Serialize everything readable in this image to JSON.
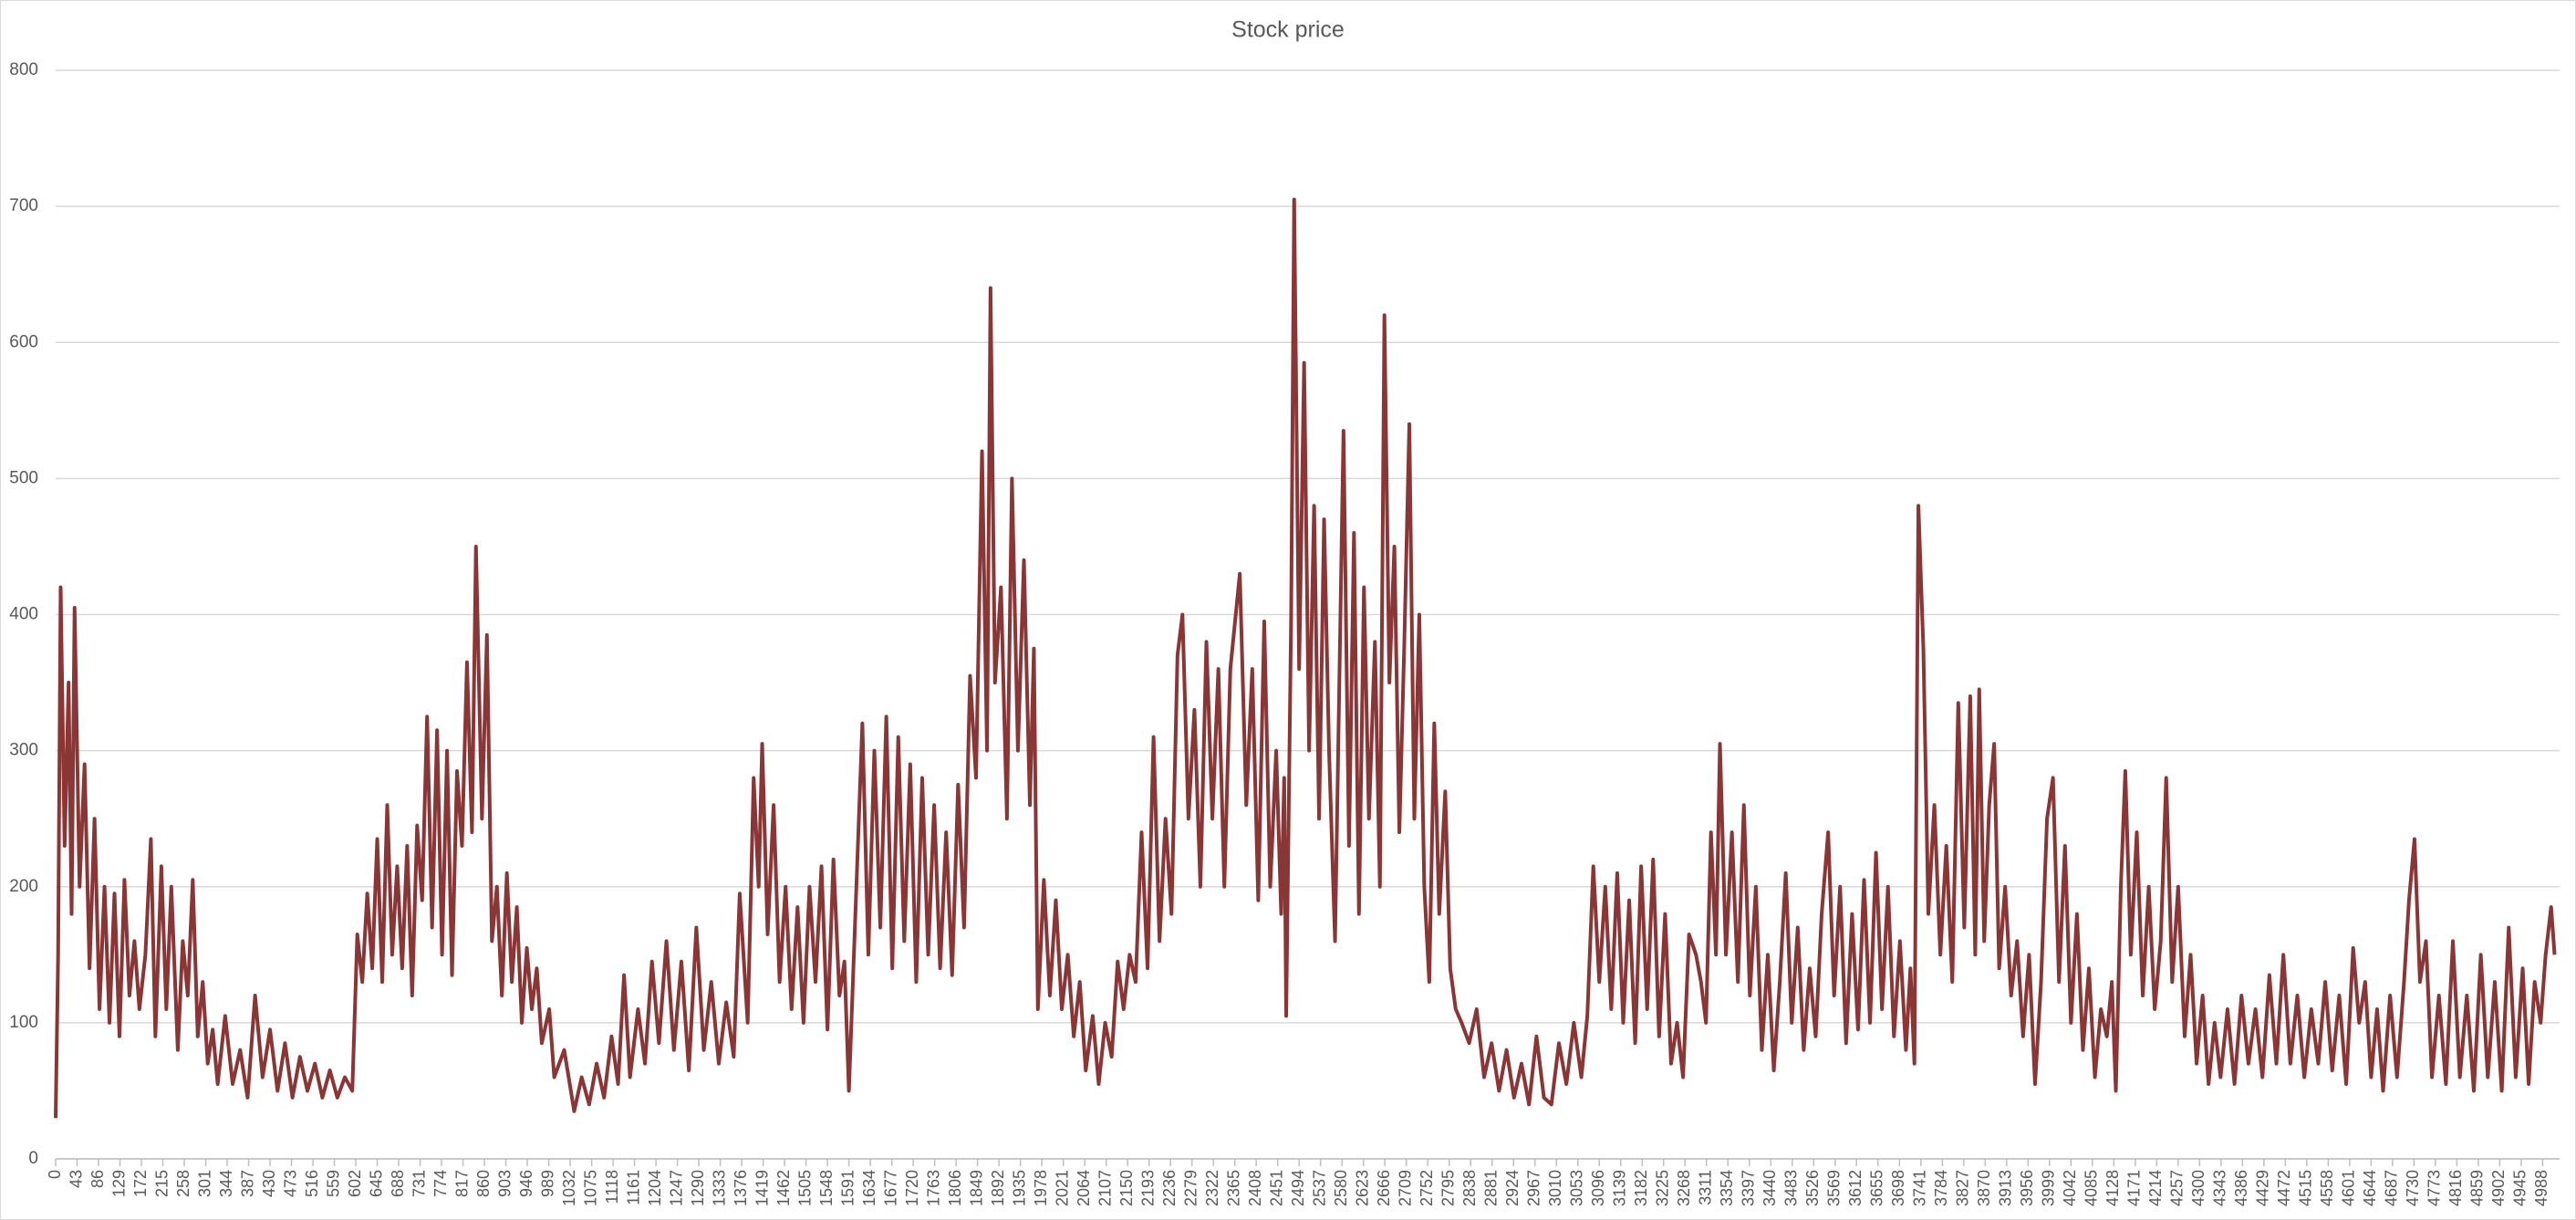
{
  "chart_data": {
    "type": "line",
    "title": "Stock price",
    "xlim": [
      0,
      5022
    ],
    "xticks": [
      0,
      43,
      86,
      129,
      172,
      215,
      258,
      301,
      344,
      387,
      430,
      473,
      516,
      559,
      602,
      645,
      688,
      731,
      774,
      817,
      860,
      903,
      946,
      989,
      1032,
      1075,
      1118,
      1161,
      1204,
      1247,
      1290,
      1333,
      1376,
      1419,
      1462,
      1505,
      1548,
      1591,
      1634,
      1677,
      1720,
      1763,
      1806,
      1849,
      1892,
      1935,
      1978,
      2021,
      2064,
      2107,
      2150,
      2193,
      2236,
      2279,
      2322,
      2365,
      2408,
      2451,
      2494,
      2537,
      2580,
      2623,
      2666,
      2709,
      2752,
      2795,
      2838,
      2881,
      2924,
      2967,
      3010,
      3053,
      3096,
      3139,
      3182,
      3225,
      3268,
      3311,
      3354,
      3397,
      3440,
      3483,
      3526,
      3569,
      3612,
      3655,
      3698,
      3741,
      3784,
      3827,
      3870,
      3913,
      3956,
      3999,
      4042,
      4085,
      4128,
      4171,
      4214,
      4257,
      4300,
      4343,
      4386,
      4429,
      4472,
      4515,
      4558,
      4601,
      4644,
      4687,
      4730,
      4773,
      4816,
      4859,
      4902,
      4945,
      4988
    ],
    "ylim": [
      0,
      800
    ],
    "yticks": [
      0,
      100,
      200,
      300,
      400,
      500,
      600,
      700,
      800
    ],
    "grid": true,
    "color": "#8b3636",
    "x": [
      0,
      5,
      10,
      18,
      26,
      32,
      38,
      48,
      58,
      68,
      78,
      88,
      98,
      108,
      118,
      128,
      138,
      148,
      158,
      168,
      180,
      191,
      200,
      212,
      222,
      232,
      245,
      255,
      265,
      275,
      285,
      295,
      305,
      315,
      325,
      340,
      355,
      370,
      385,
      400,
      415,
      430,
      445,
      460,
      475,
      490,
      505,
      520,
      535,
      550,
      565,
      580,
      595,
      605,
      615,
      625,
      635,
      645,
      655,
      665,
      675,
      685,
      695,
      705,
      715,
      725,
      735,
      745,
      755,
      765,
      775,
      785,
      795,
      805,
      815,
      825,
      835,
      843,
      855,
      865,
      875,
      885,
      895,
      905,
      915,
      925,
      935,
      945,
      955,
      965,
      975,
      990,
      1000,
      1020,
      1040,
      1055,
      1070,
      1085,
      1100,
      1115,
      1128,
      1140,
      1152,
      1168,
      1182,
      1196,
      1210,
      1225,
      1240,
      1255,
      1270,
      1285,
      1300,
      1315,
      1330,
      1345,
      1360,
      1372,
      1388,
      1400,
      1410,
      1417,
      1428,
      1440,
      1452,
      1464,
      1476,
      1488,
      1500,
      1512,
      1524,
      1536,
      1548,
      1560,
      1572,
      1582,
      1591,
      1604,
      1618,
      1630,
      1642,
      1654,
      1666,
      1678,
      1690,
      1702,
      1714,
      1726,
      1738,
      1750,
      1762,
      1774,
      1786,
      1798,
      1810,
      1822,
      1834,
      1846,
      1858,
      1868,
      1875,
      1884,
      1896,
      1908,
      1918,
      1930,
      1942,
      1954,
      1962,
      1970,
      1982,
      1994,
      2006,
      2018,
      2030,
      2042,
      2054,
      2066,
      2080,
      2092,
      2105,
      2118,
      2130,
      2142,
      2154,
      2166,
      2178,
      2190,
      2202,
      2214,
      2226,
      2238,
      2250,
      2260,
      2272,
      2284,
      2296,
      2308,
      2320,
      2332,
      2344,
      2356,
      2375,
      2388,
      2400,
      2412,
      2424,
      2436,
      2448,
      2458,
      2464,
      2468,
      2478,
      2484,
      2494,
      2504,
      2514,
      2524,
      2534,
      2544,
      2554,
      2566,
      2583,
      2594,
      2604,
      2614,
      2624,
      2634,
      2646,
      2656,
      2665,
      2675,
      2685,
      2695,
      2705,
      2715,
      2725,
      2735,
      2745,
      2755,
      2765,
      2775,
      2787,
      2797,
      2808,
      2820,
      2835,
      2850,
      2865,
      2880,
      2895,
      2910,
      2925,
      2940,
      2955,
      2970,
      2985,
      3000,
      3015,
      3030,
      3045,
      3060,
      3072,
      3084,
      3096,
      3108,
      3120,
      3132,
      3144,
      3156,
      3168,
      3180,
      3192,
      3204,
      3216,
      3228,
      3240,
      3252,
      3264,
      3276,
      3290,
      3300,
      3310,
      3320,
      3330,
      3338,
      3350,
      3362,
      3374,
      3386,
      3398,
      3410,
      3422,
      3434,
      3446,
      3458,
      3470,
      3482,
      3494,
      3506,
      3518,
      3530,
      3542,
      3555,
      3567,
      3579,
      3591,
      3603,
      3615,
      3627,
      3639,
      3651,
      3663,
      3675,
      3687,
      3699,
      3711,
      3720,
      3728,
      3736,
      3746,
      3756,
      3768,
      3780,
      3792,
      3804,
      3816,
      3828,
      3840,
      3850,
      3858,
      3868,
      3878,
      3888,
      3898,
      3910,
      3922,
      3934,
      3946,
      3958,
      3970,
      3982,
      3994,
      4006,
      4018,
      4030,
      4042,
      4054,
      4066,
      4078,
      4090,
      4102,
      4114,
      4124,
      4132,
      4142,
      4151,
      4162,
      4174,
      4186,
      4198,
      4210,
      4222,
      4233,
      4245,
      4257,
      4270,
      4282,
      4294,
      4306,
      4318,
      4330,
      4342,
      4356,
      4370,
      4384,
      4398,
      4412,
      4426,
      4440,
      4454,
      4468,
      4482,
      4496,
      4510,
      4524,
      4538,
      4552,
      4566,
      4580,
      4594,
      4608,
      4620,
      4632,
      4644,
      4656,
      4668,
      4682,
      4696,
      4710,
      4720,
      4731,
      4742,
      4754,
      4766,
      4780,
      4794,
      4808,
      4822,
      4836,
      4850,
      4864,
      4878,
      4892,
      4906,
      4920,
      4934,
      4948,
      4960,
      4972,
      4984,
      4994,
      5005,
      5012
    ],
    "values": [
      30,
      150,
      420,
      230,
      350,
      180,
      405,
      200,
      290,
      140,
      250,
      110,
      200,
      100,
      195,
      90,
      205,
      120,
      160,
      110,
      150,
      235,
      90,
      215,
      110,
      200,
      80,
      160,
      120,
      205,
      90,
      130,
      70,
      95,
      55,
      105,
      55,
      80,
      45,
      120,
      60,
      95,
      50,
      85,
      45,
      75,
      50,
      70,
      45,
      65,
      45,
      60,
      50,
      165,
      130,
      195,
      140,
      235,
      130,
      260,
      150,
      215,
      140,
      230,
      120,
      245,
      190,
      325,
      170,
      315,
      150,
      300,
      135,
      285,
      230,
      365,
      240,
      450,
      250,
      385,
      160,
      200,
      120,
      210,
      130,
      185,
      100,
      155,
      110,
      140,
      85,
      110,
      60,
      80,
      35,
      60,
      40,
      70,
      45,
      90,
      55,
      135,
      60,
      110,
      70,
      145,
      85,
      160,
      80,
      145,
      65,
      170,
      80,
      130,
      70,
      115,
      75,
      195,
      100,
      280,
      200,
      305,
      165,
      260,
      130,
      200,
      110,
      185,
      100,
      200,
      130,
      215,
      95,
      220,
      120,
      145,
      50,
      180,
      320,
      150,
      300,
      170,
      325,
      140,
      310,
      160,
      290,
      130,
      280,
      150,
      260,
      140,
      240,
      135,
      275,
      170,
      355,
      280,
      520,
      300,
      640,
      350,
      420,
      250,
      500,
      300,
      440,
      260,
      375,
      110,
      205,
      120,
      190,
      110,
      150,
      90,
      130,
      65,
      105,
      55,
      100,
      75,
      145,
      110,
      150,
      130,
      240,
      140,
      310,
      160,
      250,
      180,
      370,
      400,
      250,
      330,
      200,
      380,
      250,
      360,
      200,
      360,
      430,
      260,
      360,
      190,
      395,
      200,
      300,
      180,
      280,
      105,
      400,
      705,
      360,
      585,
      300,
      480,
      250,
      470,
      300,
      160,
      535,
      230,
      460,
      180,
      420,
      250,
      380,
      200,
      620,
      350,
      450,
      240,
      380,
      540,
      250,
      400,
      200,
      130,
      320,
      180,
      270,
      140,
      110,
      100,
      85,
      110,
      60,
      85,
      50,
      80,
      45,
      70,
      40,
      90,
      45,
      40,
      85,
      55,
      100,
      60,
      105,
      215,
      130,
      200,
      110,
      210,
      100,
      190,
      85,
      215,
      110,
      220,
      90,
      180,
      70,
      100,
      60,
      165,
      150,
      130,
      100,
      240,
      150,
      305,
      150,
      240,
      130,
      260,
      120,
      200,
      80,
      150,
      65,
      130,
      210,
      100,
      170,
      80,
      140,
      90,
      180,
      240,
      120,
      200,
      85,
      180,
      95,
      205,
      100,
      225,
      110,
      200,
      90,
      160,
      80,
      140,
      70,
      480,
      375,
      180,
      260,
      150,
      230,
      130,
      335,
      170,
      340,
      150,
      345,
      160,
      260,
      305,
      140,
      200,
      120,
      160,
      90,
      150,
      55,
      130,
      250,
      280,
      130,
      230,
      100,
      180,
      80,
      140,
      60,
      110,
      90,
      130,
      50,
      200,
      285,
      150,
      240,
      120,
      200,
      110,
      160,
      280,
      130,
      200,
      90,
      150,
      70,
      120,
      55,
      100,
      60,
      110,
      55,
      120,
      70,
      110,
      60,
      135,
      70,
      150,
      70,
      120,
      60,
      110,
      70,
      130,
      65,
      120,
      55,
      155,
      100,
      130,
      60,
      110,
      50,
      120,
      60,
      130,
      190,
      235,
      130,
      160,
      60,
      120,
      55,
      160,
      60,
      120,
      50,
      150,
      60,
      130,
      50,
      170,
      60,
      140,
      55,
      130,
      100,
      150,
      185,
      150
    ]
  }
}
